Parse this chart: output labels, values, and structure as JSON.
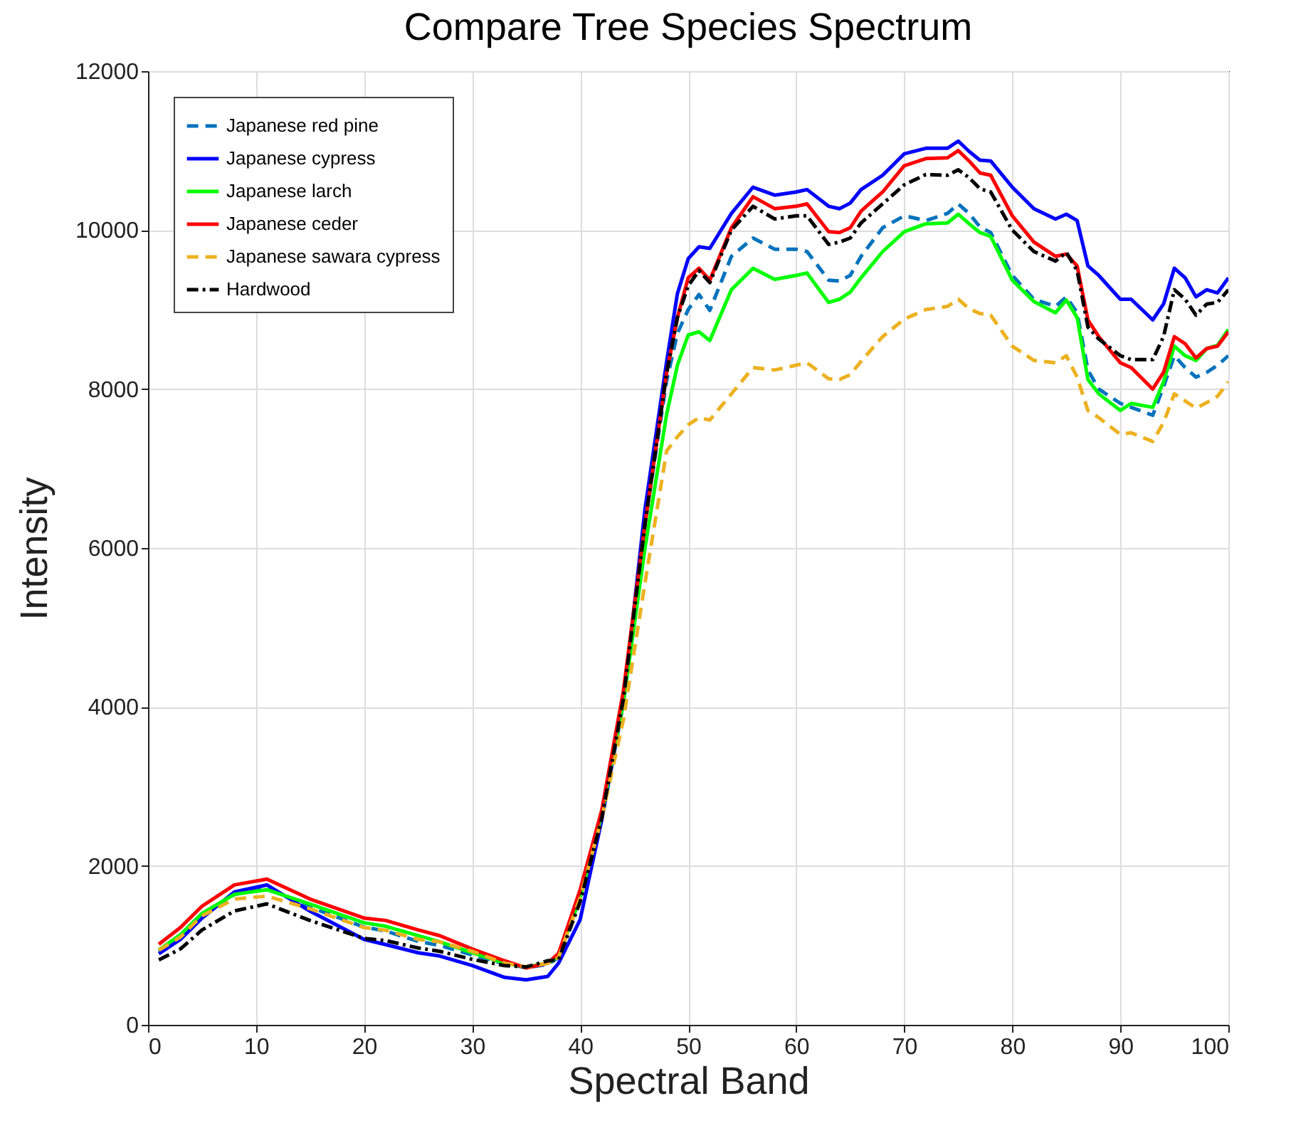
{
  "chart_data": {
    "type": "line",
    "title": "Compare Tree Species Spectrum",
    "xlabel": "Spectral Band",
    "ylabel": "Intensity",
    "x": [
      1,
      3,
      5,
      8,
      11,
      15,
      20,
      22,
      25,
      27,
      30,
      33,
      35,
      37,
      38,
      40,
      42,
      44,
      46,
      48,
      49,
      50,
      51,
      52,
      54,
      56,
      58,
      60,
      61,
      63,
      64,
      65,
      66,
      68,
      70,
      72,
      74,
      75,
      76,
      77,
      78,
      80,
      82,
      84,
      85,
      86,
      87,
      88,
      90,
      91,
      93,
      94,
      95,
      96,
      97,
      98,
      99,
      100
    ],
    "xlim": [
      0,
      100
    ],
    "xticks": [
      0,
      10,
      20,
      30,
      40,
      50,
      60,
      70,
      80,
      90,
      100
    ],
    "ylim": [
      0,
      12000
    ],
    "yticks": [
      0,
      2000,
      4000,
      6000,
      8000,
      10000,
      12000
    ],
    "grid": true,
    "legend": "top left",
    "marker": "none",
    "series": [
      {
        "name": "Japanese red pine",
        "color": "#0072bd",
        "line_style": "dashed",
        "values": [
          920,
          1100,
          1370,
          1640,
          1720,
          1480,
          1230,
          1180,
          1050,
          1000,
          880,
          770,
          720,
          760,
          850,
          1600,
          2650,
          4100,
          6300,
          8100,
          8700,
          9000,
          9190,
          8990,
          9670,
          9900,
          9760,
          9760,
          9730,
          9370,
          9360,
          9430,
          9670,
          10030,
          10180,
          10120,
          10210,
          10330,
          10210,
          10040,
          9970,
          9430,
          9130,
          9040,
          9160,
          8960,
          8240,
          8000,
          7820,
          7770,
          7670,
          8030,
          8420,
          8270,
          8150,
          8210,
          8300,
          8420
        ]
      },
      {
        "name": "Japanese cypress",
        "color": "#0000ff",
        "line_style": "solid",
        "values": [
          895,
          1075,
          1343,
          1672,
          1760,
          1430,
          1075,
          1010,
          907,
          866,
          746,
          597,
          567,
          609,
          776,
          1325,
          2580,
          4050,
          6490,
          8340,
          9200,
          9640,
          9790,
          9770,
          10210,
          10540,
          10440,
          10480,
          10510,
          10300,
          10270,
          10340,
          10510,
          10690,
          10960,
          11030,
          11030,
          11120,
          10990,
          10880,
          10870,
          10540,
          10270,
          10140,
          10200,
          10120,
          9550,
          9430,
          9130,
          9130,
          8870,
          9070,
          9520,
          9400,
          9160,
          9250,
          9210,
          9400
        ]
      },
      {
        "name": "Japanese larch",
        "color": "#00ff00",
        "line_style": "solid",
        "values": [
          943,
          1134,
          1403,
          1642,
          1700,
          1520,
          1284,
          1240,
          1122,
          1045,
          907,
          776,
          728,
          776,
          860,
          1600,
          2650,
          4050,
          6000,
          7680,
          8300,
          8680,
          8720,
          8610,
          9250,
          9520,
          9380,
          9430,
          9460,
          9090,
          9130,
          9220,
          9400,
          9730,
          9980,
          10080,
          10090,
          10200,
          10080,
          9970,
          9920,
          9370,
          9100,
          8960,
          9120,
          8900,
          8120,
          7940,
          7730,
          7820,
          7770,
          8090,
          8540,
          8420,
          8360,
          8510,
          8550,
          8750
        ]
      },
      {
        "name": "Japanese ceder",
        "color": "#ff0000",
        "line_style": "solid",
        "values": [
          1015,
          1224,
          1493,
          1761,
          1833,
          1582,
          1343,
          1313,
          1194,
          1122,
          955,
          806,
          716,
          776,
          900,
          1700,
          2700,
          4200,
          6300,
          8200,
          8900,
          9400,
          9520,
          9370,
          10030,
          10420,
          10270,
          10300,
          10330,
          9980,
          9970,
          10030,
          10240,
          10480,
          10810,
          10900,
          10910,
          11000,
          10870,
          10720,
          10690,
          10180,
          9850,
          9670,
          9700,
          9550,
          8870,
          8660,
          8330,
          8270,
          8000,
          8210,
          8660,
          8570,
          8390,
          8510,
          8540,
          8720
        ]
      },
      {
        "name": "Japanese sawara cypress",
        "color": "#edb120",
        "line_style": "dashed",
        "values": [
          940,
          1104,
          1373,
          1582,
          1620,
          1460,
          1224,
          1190,
          1075,
          1045,
          925,
          776,
          728,
          776,
          850,
          1600,
          2600,
          3840,
          5560,
          7220,
          7400,
          7550,
          7640,
          7610,
          7940,
          8270,
          8240,
          8300,
          8330,
          8130,
          8120,
          8180,
          8350,
          8660,
          8880,
          9000,
          9040,
          9130,
          9010,
          8950,
          8930,
          8540,
          8360,
          8330,
          8420,
          8150,
          7730,
          7640,
          7430,
          7450,
          7340,
          7580,
          7940,
          7850,
          7760,
          7830,
          7910,
          8090
        ]
      },
      {
        "name": "Hardwood",
        "color": "#000000",
        "line_style": "dashdot",
        "values": [
          818,
          955,
          1194,
          1433,
          1522,
          1313,
          1087,
          1060,
          967,
          925,
          824,
          746,
          728,
          806,
          820,
          1550,
          2600,
          4100,
          6300,
          8200,
          8900,
          9300,
          9490,
          9340,
          10000,
          10300,
          10140,
          10180,
          10180,
          9820,
          9850,
          9900,
          10090,
          10330,
          10570,
          10700,
          10690,
          10760,
          10660,
          10520,
          10480,
          10000,
          9730,
          9610,
          9720,
          9490,
          8780,
          8630,
          8420,
          8370,
          8370,
          8660,
          9250,
          9130,
          8930,
          9070,
          9090,
          9250
        ]
      }
    ]
  }
}
